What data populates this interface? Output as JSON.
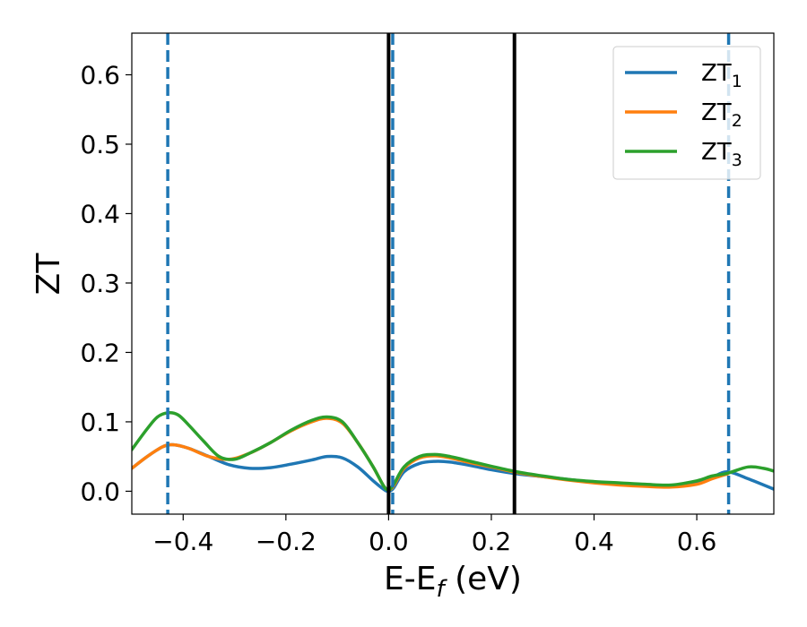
{
  "chart_data": {
    "type": "line",
    "xlabel": "E-E",
    "xlabel_sub": "f",
    "xlabel_unit": " (eV)",
    "ylabel": "ZT",
    "xlim": [
      -0.5,
      0.75
    ],
    "ylim": [
      -0.033,
      0.66
    ],
    "xticks": [
      -0.4,
      -0.2,
      0.0,
      0.2,
      0.4,
      0.6
    ],
    "xtick_labels": [
      "−0.4",
      "−0.2",
      "0.0",
      "0.2",
      "0.4",
      "0.6"
    ],
    "yticks": [
      0.0,
      0.1,
      0.2,
      0.3,
      0.4,
      0.5,
      0.6
    ],
    "ytick_labels": [
      "0.0",
      "0.1",
      "0.2",
      "0.3",
      "0.4",
      "0.5",
      "0.6"
    ],
    "grid": false,
    "legend_position": "top-right",
    "series": [
      {
        "name": "ZT",
        "sub": "1",
        "color": "#1f77b4",
        "x": [
          -0.5,
          -0.47,
          -0.44,
          -0.42,
          -0.39,
          -0.35,
          -0.31,
          -0.27,
          -0.23,
          -0.19,
          -0.15,
          -0.12,
          -0.09,
          -0.06,
          -0.03,
          -0.01,
          0.0,
          0.01,
          0.03,
          0.06,
          0.09,
          0.12,
          0.16,
          0.2,
          0.25,
          0.3,
          0.35,
          0.4,
          0.45,
          0.5,
          0.55,
          0.6,
          0.63,
          0.66,
          0.7,
          0.75
        ],
        "y": [
          0.033,
          0.05,
          0.064,
          0.067,
          0.062,
          0.05,
          0.038,
          0.033,
          0.034,
          0.039,
          0.045,
          0.05,
          0.048,
          0.035,
          0.015,
          0.003,
          0.0,
          0.005,
          0.028,
          0.04,
          0.043,
          0.042,
          0.037,
          0.031,
          0.025,
          0.021,
          0.017,
          0.013,
          0.01,
          0.008,
          0.007,
          0.012,
          0.02,
          0.028,
          0.018,
          0.003
        ]
      },
      {
        "name": "ZT",
        "sub": "2",
        "color": "#ff7f0e",
        "x": [
          -0.5,
          -0.47,
          -0.44,
          -0.42,
          -0.39,
          -0.35,
          -0.31,
          -0.27,
          -0.23,
          -0.19,
          -0.15,
          -0.12,
          -0.09,
          -0.06,
          -0.03,
          -0.01,
          0.0,
          0.01,
          0.03,
          0.06,
          0.09,
          0.12,
          0.16,
          0.2,
          0.25,
          0.3,
          0.35,
          0.4,
          0.45,
          0.5,
          0.55,
          0.6,
          0.63,
          0.66
        ],
        "y": [
          0.033,
          0.05,
          0.064,
          0.067,
          0.062,
          0.05,
          0.046,
          0.055,
          0.07,
          0.087,
          0.1,
          0.105,
          0.098,
          0.07,
          0.035,
          0.008,
          0.002,
          0.008,
          0.033,
          0.048,
          0.051,
          0.048,
          0.041,
          0.035,
          0.027,
          0.021,
          0.016,
          0.012,
          0.009,
          0.007,
          0.006,
          0.01,
          0.018,
          0.025
        ]
      },
      {
        "name": "ZT",
        "sub": "3",
        "color": "#2ca02c",
        "x": [
          -0.5,
          -0.47,
          -0.45,
          -0.43,
          -0.41,
          -0.39,
          -0.36,
          -0.33,
          -0.3,
          -0.27,
          -0.23,
          -0.19,
          -0.15,
          -0.12,
          -0.09,
          -0.06,
          -0.03,
          -0.01,
          0.0,
          0.01,
          0.03,
          0.06,
          0.09,
          0.12,
          0.16,
          0.2,
          0.25,
          0.3,
          0.35,
          0.4,
          0.45,
          0.5,
          0.55,
          0.6,
          0.63,
          0.66,
          0.7,
          0.73,
          0.75
        ],
        "y": [
          0.06,
          0.09,
          0.107,
          0.113,
          0.11,
          0.096,
          0.072,
          0.05,
          0.046,
          0.055,
          0.07,
          0.088,
          0.102,
          0.107,
          0.1,
          0.07,
          0.035,
          0.008,
          0.002,
          0.01,
          0.035,
          0.05,
          0.053,
          0.05,
          0.043,
          0.036,
          0.028,
          0.022,
          0.017,
          0.014,
          0.012,
          0.01,
          0.009,
          0.015,
          0.022,
          0.026,
          0.035,
          0.033,
          0.029
        ]
      }
    ],
    "vlines": [
      {
        "x": -0.43,
        "color": "#1f77b4",
        "style": "dashed"
      },
      {
        "x": 0.008,
        "color": "#1f77b4",
        "style": "dashed"
      },
      {
        "x": 0.662,
        "color": "#1f77b4",
        "style": "dashed"
      },
      {
        "x": 0.0,
        "color": "#000000",
        "style": "solid"
      },
      {
        "x": 0.245,
        "color": "#000000",
        "style": "solid"
      }
    ]
  }
}
